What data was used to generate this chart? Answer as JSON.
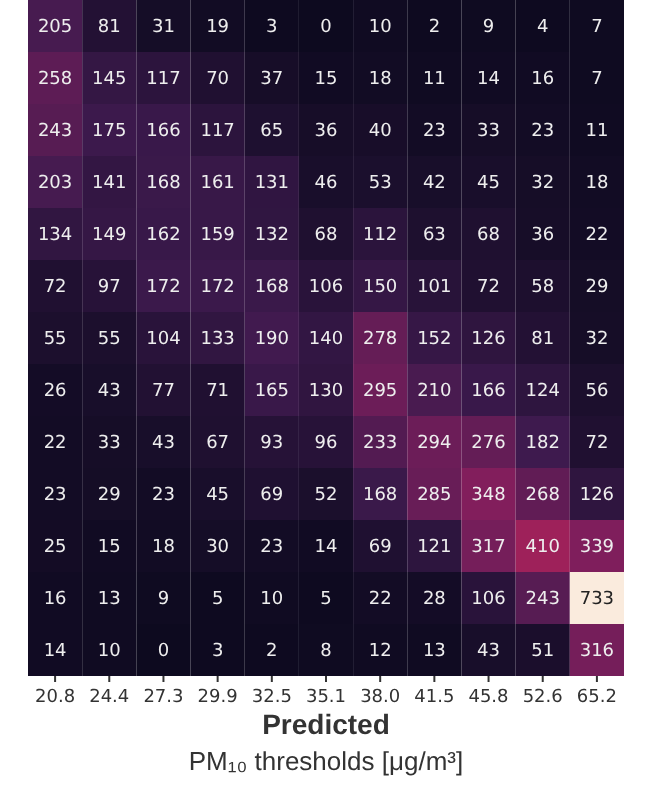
{
  "chart_data": {
    "type": "heatmap",
    "xlabel": "Predicted\nPM₁₀ thresholds [μg/m³]",
    "categories": [
      "20.8",
      "24.4",
      "27.3",
      "29.9",
      "32.5",
      "35.1",
      "38.0",
      "41.5",
      "45.8",
      "52.6",
      "65.2"
    ],
    "y_categories": [
      null,
      null,
      null,
      null,
      null,
      null,
      null,
      null,
      null,
      null,
      null,
      null,
      null
    ],
    "data_labels": true,
    "cells": [
      [
        205,
        81,
        31,
        19,
        3,
        0,
        10,
        2,
        9,
        4,
        7
      ],
      [
        258,
        145,
        117,
        70,
        37,
        15,
        18,
        11,
        14,
        16,
        7
      ],
      [
        243,
        175,
        166,
        117,
        65,
        36,
        40,
        23,
        33,
        23,
        11
      ],
      [
        203,
        141,
        168,
        161,
        131,
        46,
        53,
        42,
        45,
        32,
        18
      ],
      [
        134,
        149,
        162,
        159,
        132,
        68,
        112,
        63,
        68,
        36,
        22
      ],
      [
        72,
        97,
        172,
        172,
        168,
        106,
        150,
        101,
        72,
        58,
        29
      ],
      [
        55,
        55,
        104,
        133,
        190,
        140,
        278,
        152,
        126,
        81,
        32
      ],
      [
        26,
        43,
        77,
        71,
        165,
        130,
        295,
        210,
        166,
        124,
        56
      ],
      [
        22,
        33,
        43,
        67,
        93,
        96,
        233,
        294,
        276,
        182,
        72
      ],
      [
        23,
        29,
        23,
        45,
        69,
        52,
        168,
        285,
        348,
        268,
        126
      ],
      [
        25,
        15,
        18,
        30,
        23,
        14,
        69,
        121,
        317,
        410,
        339
      ],
      [
        16,
        13,
        9,
        5,
        10,
        5,
        22,
        28,
        106,
        243,
        733
      ],
      [
        14,
        10,
        0,
        3,
        2,
        8,
        12,
        13,
        43,
        51,
        316
      ]
    ]
  }
}
